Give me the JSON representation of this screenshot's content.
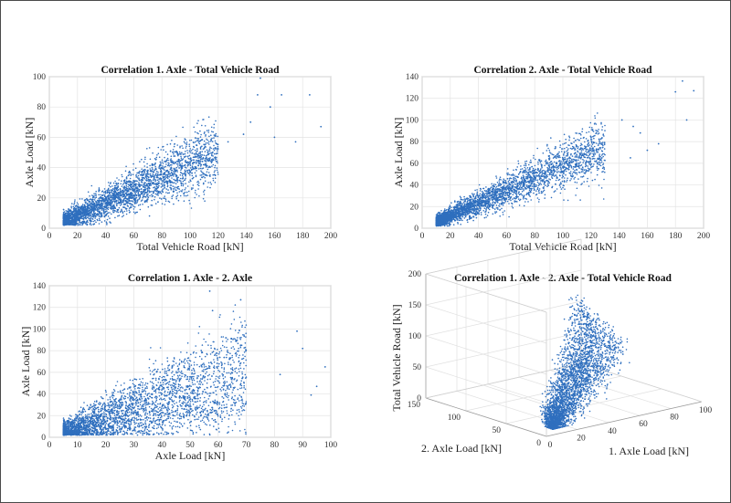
{
  "point_color": "#2f6fbe",
  "chart_data": [
    {
      "type": "scatter",
      "title": "Correlation 1. Axle - Total Vehicle Road",
      "xlabel": "Total Vehicle Road [kN]",
      "ylabel": "Axle Load [kN]",
      "xlim": [
        0,
        200
      ],
      "ylim": [
        0,
        100
      ],
      "xticks": [
        0,
        20,
        40,
        60,
        80,
        100,
        120,
        140,
        160,
        180,
        200
      ],
      "yticks": [
        0,
        20,
        40,
        60,
        80,
        100
      ],
      "grid": true,
      "dense_region": {
        "x_range": [
          10,
          120
        ],
        "y_ratio": 0.42,
        "y_spread": 8
      },
      "outliers": [
        [
          150,
          99
        ],
        [
          148,
          88
        ],
        [
          157,
          80
        ],
        [
          165,
          88
        ],
        [
          175,
          57
        ],
        [
          185,
          88
        ],
        [
          193,
          67
        ],
        [
          160,
          60
        ],
        [
          143,
          70
        ],
        [
          138,
          62
        ],
        [
          127,
          57
        ]
      ]
    },
    {
      "type": "scatter",
      "title": "Correlation 2. Axle - Total Vehicle Road",
      "xlabel": "Total Vehicle Road [kN]",
      "ylabel": "Axle Load [kN]",
      "xlim": [
        0,
        200
      ],
      "ylim": [
        0,
        140
      ],
      "xticks": [
        0,
        20,
        40,
        60,
        80,
        100,
        120,
        140,
        160,
        180,
        200
      ],
      "yticks": [
        0,
        20,
        40,
        60,
        80,
        100,
        120,
        140
      ],
      "grid": true,
      "dense_region": {
        "x_range": [
          10,
          130
        ],
        "y_ratio": 0.58,
        "y_spread": 9
      },
      "outliers": [
        [
          185,
          136
        ],
        [
          193,
          127
        ],
        [
          188,
          100
        ],
        [
          180,
          126
        ],
        [
          160,
          72
        ],
        [
          155,
          88
        ],
        [
          150,
          94
        ],
        [
          148,
          65
        ],
        [
          142,
          100
        ],
        [
          168,
          78
        ]
      ]
    },
    {
      "type": "scatter",
      "title": "Correlation 1. Axle - 2. Axle",
      "xlabel": "Axle Load [kN]",
      "ylabel": "Axle Load [kN]",
      "xlim": [
        0,
        100
      ],
      "ylim": [
        0,
        140
      ],
      "xticks": [
        0,
        10,
        20,
        30,
        40,
        50,
        60,
        70,
        80,
        90,
        100
      ],
      "yticks": [
        0,
        20,
        40,
        60,
        80,
        100,
        120,
        140
      ],
      "grid": true,
      "dense_region": {
        "x_range": [
          5,
          70
        ],
        "y_ratio": 1.05,
        "y_spread": 14
      },
      "outliers": [
        [
          57,
          135
        ],
        [
          58,
          117
        ],
        [
          68,
          127
        ],
        [
          88,
          98
        ],
        [
          98,
          65
        ],
        [
          95,
          47
        ],
        [
          90,
          82
        ],
        [
          82,
          58
        ],
        [
          93,
          39
        ],
        [
          64,
          72
        ]
      ]
    },
    {
      "type": "scatter3d",
      "title": "Correlation 1. Axle - 2. Axle - Total Vehicle Road",
      "xlabel": "1. Axle Load [kN]",
      "ylabel": "2. Axle Load [kN]",
      "zlabel": "Total Vehicle Road [kN]",
      "xlim": [
        0,
        100
      ],
      "ylim": [
        0,
        150
      ],
      "zlim": [
        0,
        200
      ],
      "xticks": [
        0,
        20,
        40,
        60,
        80,
        100
      ],
      "yticks": [
        0,
        50,
        100,
        150
      ],
      "zticks": [
        0,
        50,
        100,
        150,
        200
      ],
      "grid": true
    }
  ]
}
